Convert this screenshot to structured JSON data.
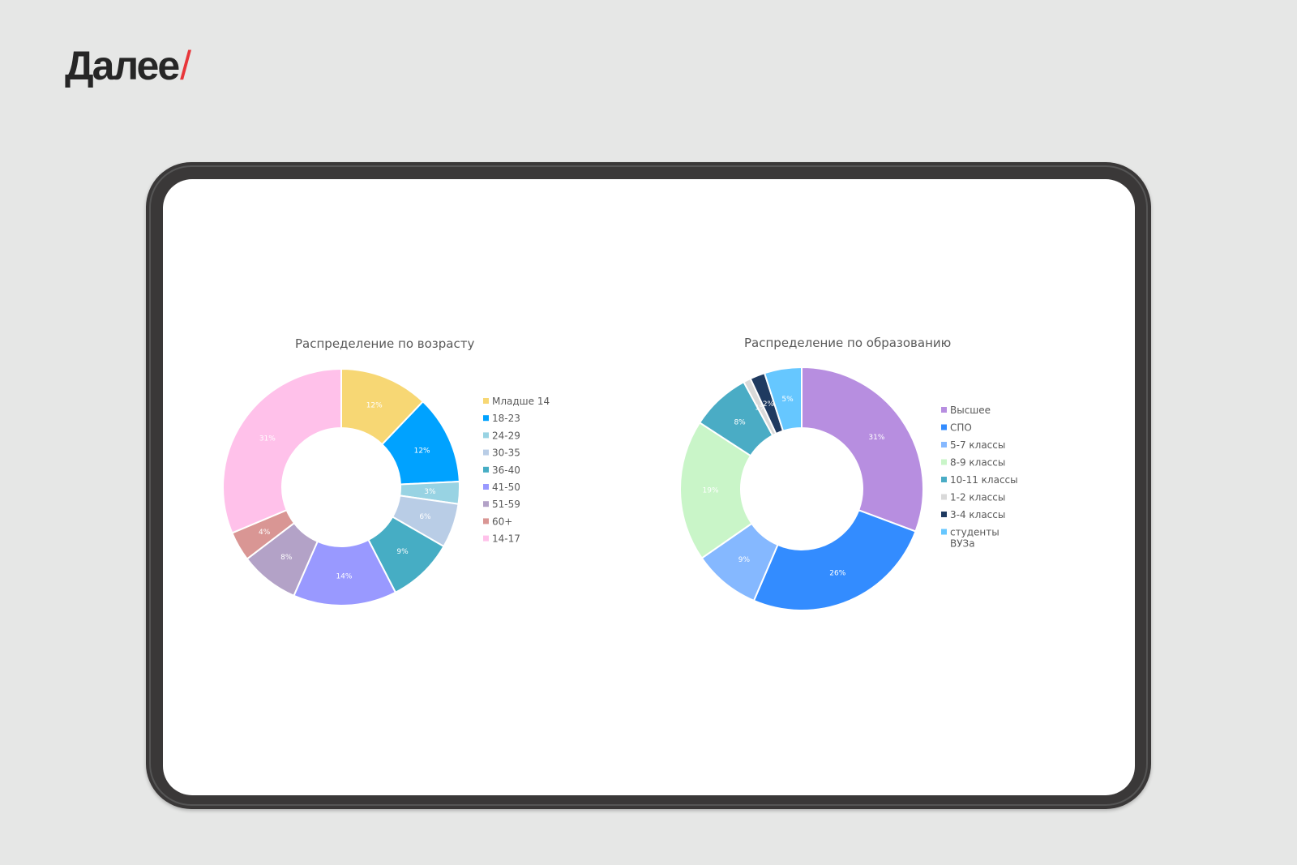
{
  "brand": {
    "name": "Далее",
    "slash": "/"
  },
  "chart_data": [
    {
      "type": "pie",
      "title": "Распределение по возрасту",
      "categories": [
        "Младше 14",
        "18-23",
        "24-29",
        "30-35",
        "36-40",
        "41-50",
        "51-59",
        "60+",
        "14-17"
      ],
      "values": [
        12,
        12,
        3,
        6,
        9,
        14,
        8,
        4,
        31
      ],
      "labels": [
        "12%",
        "12%",
        "3%",
        "6%",
        "9%",
        "14%",
        "8%",
        "4%",
        "31%"
      ],
      "colors": [
        "#f7d774",
        "#00a2ff",
        "#98d3e3",
        "#b9cde6",
        "#46adc4",
        "#9999ff",
        "#b3a2c7",
        "#d99694",
        "#ffc1ea"
      ],
      "legend_position": "right"
    },
    {
      "type": "pie",
      "title": "Распределение по образованию",
      "categories": [
        "Высшее",
        "СПО",
        "5-7 классы",
        "8-9 классы",
        "10-11 классы",
        "1-2 классы",
        "3-4 классы",
        "студенты ВУЗа"
      ],
      "values": [
        31,
        26,
        9,
        19,
        8,
        1,
        2,
        5
      ],
      "labels": [
        "31%",
        "26%",
        "9%",
        "19%",
        "8%",
        "1%",
        "2%",
        "5%"
      ],
      "colors": [
        "#b78ee0",
        "#338cff",
        "#85b8ff",
        "#c9f5c8",
        "#4aacc5",
        "#d9d9d9",
        "#1f3a60",
        "#66c7ff"
      ],
      "legend_position": "right"
    }
  ]
}
